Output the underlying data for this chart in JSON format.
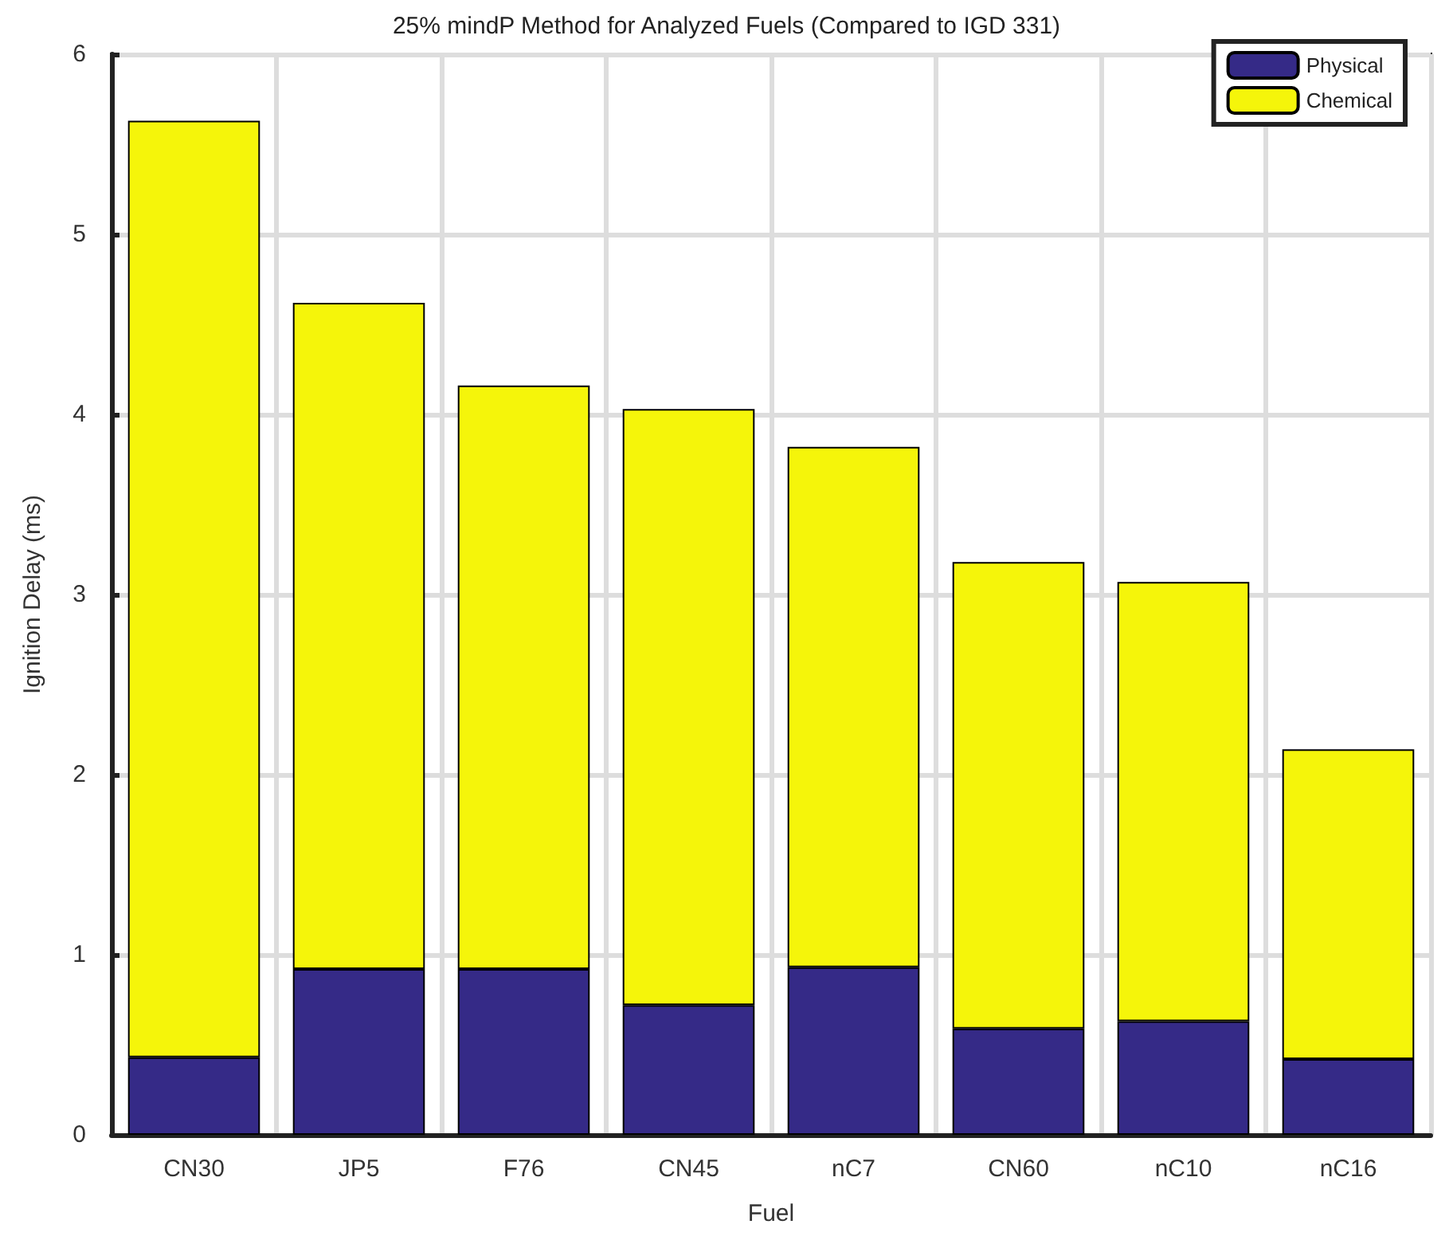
{
  "chart_data": {
    "type": "bar",
    "title": "25% mindP Method for Analyzed Fuels (Compared to IGD 331)",
    "xlabel": "Fuel",
    "ylabel": "Ignition Delay (ms)",
    "categories": [
      "CN30",
      "JP5",
      "F76",
      "CN45",
      "nC7",
      "CN60",
      "nC10",
      "nC16"
    ],
    "stacked": true,
    "series": [
      {
        "name": "Physical",
        "color": "#352a87",
        "values": [
          0.43,
          0.92,
          0.92,
          0.72,
          0.93,
          0.59,
          0.63,
          0.42
        ]
      },
      {
        "name": "Chemical",
        "color": "#f5f50a",
        "values": [
          5.2,
          3.7,
          3.24,
          3.31,
          2.89,
          2.59,
          2.44,
          1.72
        ]
      }
    ],
    "ylim": [
      0,
      6
    ],
    "yticks": [
      0,
      1,
      2,
      3,
      4,
      5,
      6
    ],
    "grid": true,
    "legend": "top right"
  }
}
